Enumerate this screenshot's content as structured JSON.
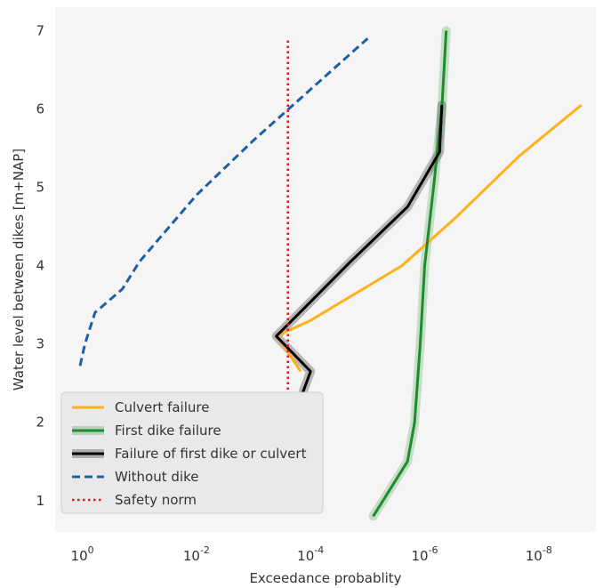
{
  "chart_data": {
    "type": "line",
    "title": "",
    "xlabel": "Exceedance probablity",
    "ylabel": "Water level between dikes [m+NAP]",
    "x_scale": "log-reversed",
    "xlim": [
      3,
      1e-09
    ],
    "ylim": [
      0.6,
      7.3
    ],
    "x_tick_labels": [
      "10^0",
      "10^-2",
      "10^-4",
      "10^-6",
      "10^-8"
    ],
    "x_tick_values": [
      1,
      0.01,
      0.0001,
      1e-06,
      1e-08
    ],
    "y_ticks": [
      1,
      2,
      3,
      4,
      5,
      6,
      7
    ],
    "grid": false,
    "legend_position": "lower-left",
    "series": [
      {
        "name": "Culvert failure",
        "style": "solid",
        "color": "#FFB11B",
        "points": [
          [
            0.00015,
            2.65
          ],
          [
            0.00025,
            2.9
          ],
          [
            0.0004,
            3.1
          ],
          [
            0.0001,
            3.3
          ],
          [
            2.5e-06,
            4.0
          ],
          [
            3e-07,
            4.6
          ],
          [
            2.2e-08,
            5.4
          ],
          [
            1.8e-09,
            6.05
          ]
        ]
      },
      {
        "name": "First dike failure",
        "style": "solid",
        "color": "#1E8C2B",
        "band": true,
        "points": [
          [
            8e-06,
            0.8
          ],
          [
            2e-06,
            1.5
          ],
          [
            1.5e-06,
            2.0
          ],
          [
            1.2e-06,
            3.0
          ],
          [
            1e-06,
            4.0
          ],
          [
            7e-07,
            5.0
          ],
          [
            5e-07,
            6.0
          ],
          [
            4.2e-07,
            7.0
          ]
        ]
      },
      {
        "name": "Failure of first dike or culvert",
        "style": "solid",
        "color": "#000000",
        "band": true,
        "points": [
          [
            0.00015,
            2.3
          ],
          [
            0.0001,
            2.65
          ],
          [
            0.0004,
            3.1
          ],
          [
            2e-05,
            4.05
          ],
          [
            2e-06,
            4.75
          ],
          [
            5.5e-07,
            5.45
          ],
          [
            5e-07,
            6.05
          ]
        ]
      },
      {
        "name": "Without dike",
        "style": "dashed",
        "color": "#1F5FA6",
        "points": [
          [
            1.1,
            2.72
          ],
          [
            0.9,
            3.0
          ],
          [
            0.6,
            3.4
          ],
          [
            0.2,
            3.7
          ],
          [
            0.1,
            4.05
          ],
          [
            0.01,
            4.9
          ],
          [
            0.001,
            5.6
          ],
          [
            0.0001,
            6.25
          ],
          [
            1e-05,
            6.9
          ]
        ]
      },
      {
        "name": "Safety norm",
        "style": "dotted",
        "color": "#E8141C",
        "points": [
          [
            0.00025,
            0.85
          ],
          [
            0.00025,
            6.9
          ]
        ]
      }
    ]
  }
}
